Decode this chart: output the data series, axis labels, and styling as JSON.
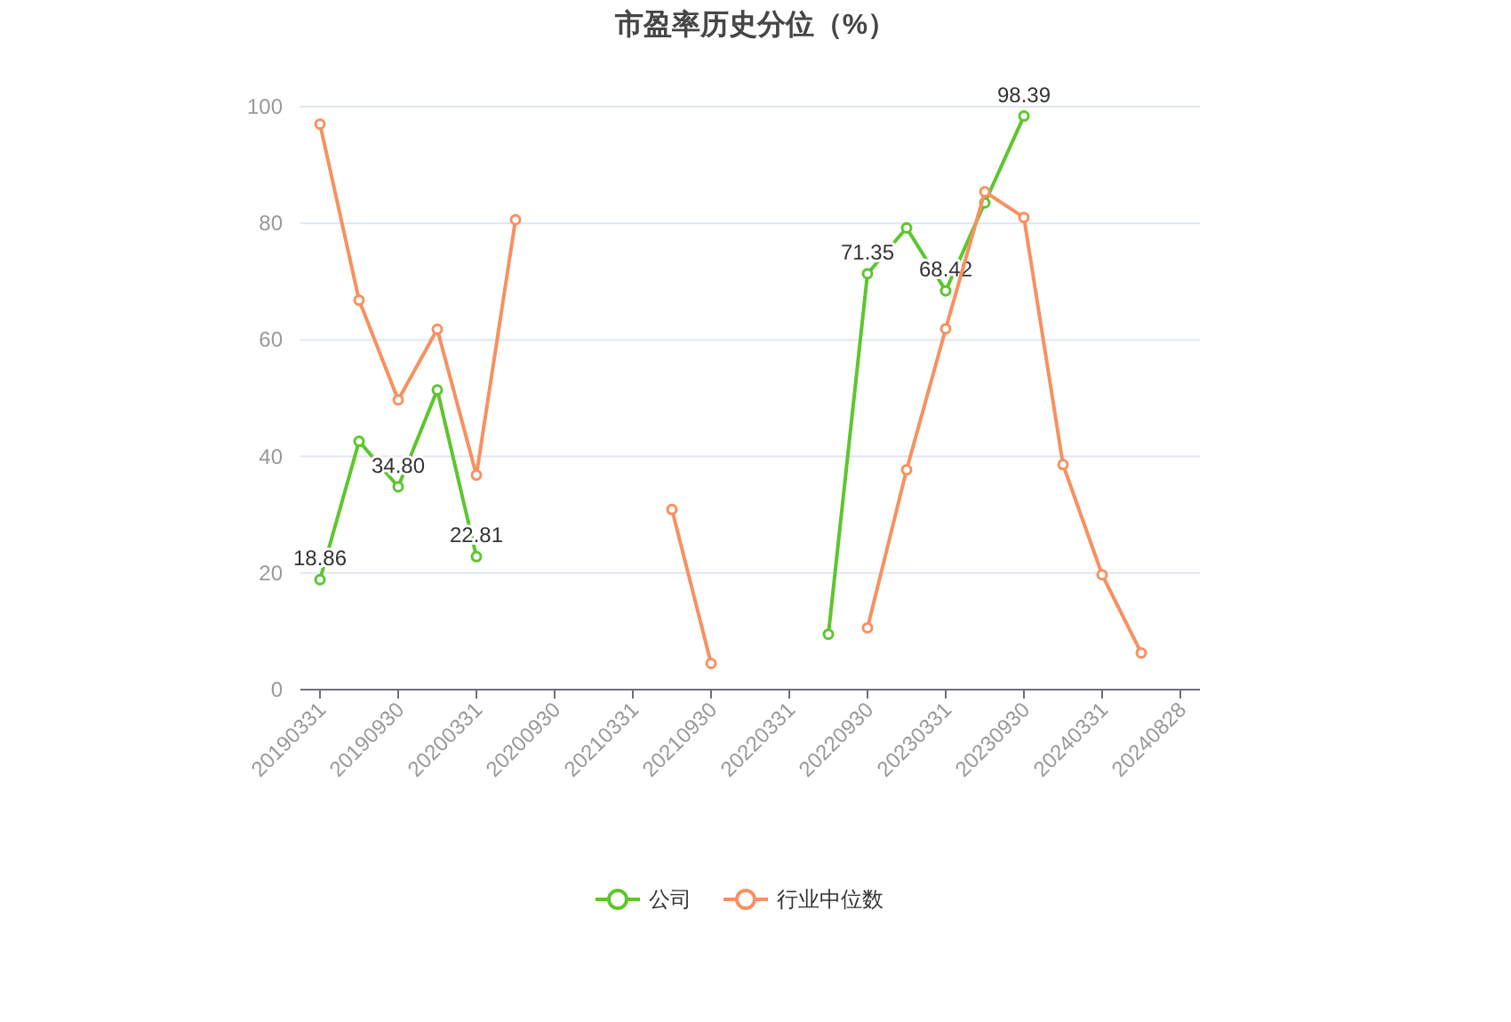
{
  "chart_data": {
    "type": "line",
    "title": "市盈率历史分位（%）",
    "categories": [
      "20190331",
      null,
      "20190930",
      null,
      "20200331",
      null,
      "20200930",
      null,
      "20210331",
      null,
      "20210930",
      null,
      "20220331",
      null,
      "20220930",
      null,
      "20230331",
      null,
      "20230930",
      null,
      "20240331",
      null,
      "20240828"
    ],
    "series": [
      {
        "name": "公司",
        "color": "#5cc62e",
        "values": [
          18.86,
          42.6,
          34.8,
          51.4,
          22.81,
          null,
          null,
          null,
          null,
          null,
          null,
          null,
          null,
          9.5,
          71.35,
          79.2,
          68.42,
          83.5,
          98.39,
          null,
          null,
          null,
          null
        ],
        "value_labels": [
          "18.86",
          null,
          "34.80",
          null,
          "22.81",
          null,
          null,
          null,
          null,
          null,
          null,
          null,
          null,
          null,
          "71.35",
          null,
          "68.42",
          null,
          "98.39",
          null,
          null,
          null,
          null
        ]
      },
      {
        "name": "行业中位数",
        "color": "#f7915f",
        "values": [
          97.0,
          66.8,
          49.7,
          61.8,
          36.8,
          80.6,
          null,
          null,
          null,
          30.9,
          4.5,
          null,
          null,
          null,
          10.6,
          37.7,
          61.9,
          85.4,
          81.0,
          38.6,
          19.7,
          6.3,
          null
        ]
      }
    ],
    "ylim": [
      0,
      100
    ],
    "yticks": [
      0,
      20,
      40,
      60,
      80,
      100
    ],
    "grid": "y",
    "legend": "bottom",
    "marker": "circle"
  }
}
